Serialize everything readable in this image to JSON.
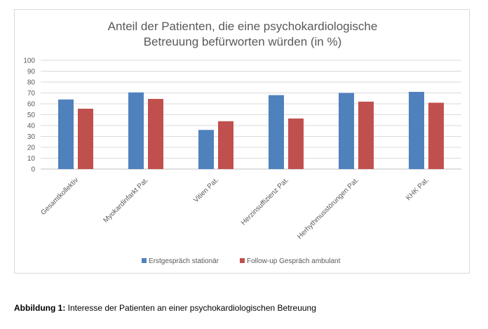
{
  "chart_data": {
    "type": "bar",
    "title": "Anteil der Patienten, die eine psychokardiologische Betreuung befürworten würden (in %)",
    "title_lines": [
      "Anteil der Patienten, die eine psychokardiologische",
      "Betreuung befürworten würden (in %)"
    ],
    "categories": [
      "Gesamtkollektiv",
      "Myokardinfarkt Pat.",
      "Vitien Pat.",
      "Herzinsuffizienz Pat.",
      "Herhythmusstörungen Pat.",
      "KHK Pat."
    ],
    "series": [
      {
        "name": "Erstgespräch stationär",
        "color": "#4f81bd",
        "values": [
          64,
          70.5,
          36,
          68,
          70,
          71
        ]
      },
      {
        "name": "Follow-up Gespräch ambulant",
        "color": "#c0504d",
        "values": [
          55.5,
          64.5,
          44,
          46.5,
          62,
          61
        ]
      }
    ],
    "ylim": [
      0,
      100
    ],
    "yticks": [
      "0",
      "10",
      "20",
      "30",
      "40",
      "50",
      "60",
      "70",
      "80",
      "90",
      "100"
    ],
    "grid": true,
    "legend": "bottom"
  },
  "caption": {
    "label": "Abbildung 1:",
    "text": " Interesse der Patienten an einer psychokardiologischen Betreuung"
  }
}
